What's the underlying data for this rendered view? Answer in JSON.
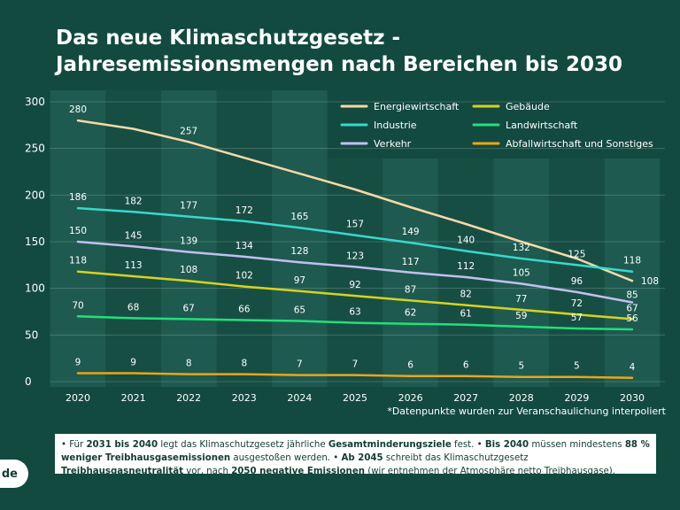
{
  "title": {
    "line1": "Das neue Klimaschutzgesetz -",
    "line2": "Jahresemissionsmengen nach Bereichen bis 2030"
  },
  "footnote": "*Datenpunkte wurden zur Veranschaulichung interpoliert",
  "info": {
    "parts": [
      {
        "t": "• Für ",
        "b": false
      },
      {
        "t": "2031 bis 2040",
        "b": true
      },
      {
        "t": " legt das Klimaschutzgesetz jährliche ",
        "b": false
      },
      {
        "t": "Gesamtminderungsziele",
        "b": true
      },
      {
        "t": " fest. • ",
        "b": false
      },
      {
        "t": "Bis 2040",
        "b": true
      },
      {
        "t": " müssen mindestens ",
        "b": false
      },
      {
        "t": "88 % weniger Treibhausgasemissionen",
        "b": true
      },
      {
        "t": " ausgestoßen werden. • ",
        "b": false
      },
      {
        "t": "Ab 2045",
        "b": true
      },
      {
        "t": " schreibt das Klimaschutzgesetz ",
        "b": false
      },
      {
        "t": "Treibhausgasneutralität",
        "b": true
      },
      {
        "t": " vor, nach ",
        "b": false
      },
      {
        "t": "2050 negative Emissionen",
        "b": true
      },
      {
        "t": " (wir entnehmen der Atmosphäre netto Treibhausgase).",
        "b": false
      }
    ]
  },
  "badge": "de",
  "colors": {
    "background": "#124a40",
    "panel_light": "#1e5a4f",
    "panel_dark": "#174e44"
  },
  "chart_data": {
    "type": "line",
    "x": [
      "2020",
      "2021",
      "2022",
      "2023",
      "2024",
      "2025",
      "2026",
      "2027",
      "2028",
      "2029",
      "2030"
    ],
    "ylim": [
      0,
      300
    ],
    "yticks": [
      "0",
      "50",
      "100",
      "150",
      "200",
      "250",
      "300"
    ],
    "legend_position": "top-right",
    "series": [
      {
        "name": "Energiewirtschaft",
        "color": "#f7d9a6",
        "values": [
          280,
          271,
          257,
          240,
          223,
          206,
          187,
          169,
          150,
          132,
          108
        ],
        "labels": [
          "280",
          null,
          "257",
          null,
          null,
          null,
          null,
          null,
          null,
          null,
          "108"
        ]
      },
      {
        "name": "Industrie",
        "color": "#36d9cf",
        "values": [
          186,
          182,
          177,
          172,
          165,
          157,
          149,
          140,
          132,
          125,
          118
        ],
        "labels": [
          "186",
          "182",
          "177",
          "172",
          "165",
          "157",
          "149",
          "140",
          "132",
          "125",
          "118"
        ]
      },
      {
        "name": "Verkehr",
        "color": "#c3bff0",
        "values": [
          150,
          145,
          139,
          134,
          128,
          123,
          117,
          112,
          105,
          96,
          85
        ],
        "labels": [
          "150",
          "145",
          "139",
          "134",
          "128",
          "123",
          "117",
          "112",
          "105",
          "96",
          "85"
        ]
      },
      {
        "name": "Gebäude",
        "color": "#d6d31f",
        "values": [
          118,
          113,
          108,
          102,
          97,
          92,
          87,
          82,
          77,
          72,
          67
        ],
        "labels": [
          "118",
          "113",
          "108",
          "102",
          "97",
          "92",
          "87",
          "82",
          "77",
          "72",
          "67"
        ]
      },
      {
        "name": "Landwirtschaft",
        "color": "#22e07a",
        "values": [
          70,
          68,
          67,
          66,
          65,
          63,
          62,
          61,
          59,
          57,
          56
        ],
        "labels": [
          "70",
          "68",
          "67",
          "66",
          "65",
          "63",
          "62",
          "61",
          "59",
          "57",
          "56"
        ]
      },
      {
        "name": "Abfallwirtschaft und Sonstiges",
        "color": "#e9a61a",
        "values": [
          9,
          9,
          8,
          8,
          7,
          7,
          6,
          6,
          5,
          5,
          4
        ],
        "labels": [
          "9",
          "9",
          "8",
          "8",
          "7",
          "7",
          "6",
          "6",
          "5",
          "5",
          "4"
        ]
      }
    ]
  }
}
